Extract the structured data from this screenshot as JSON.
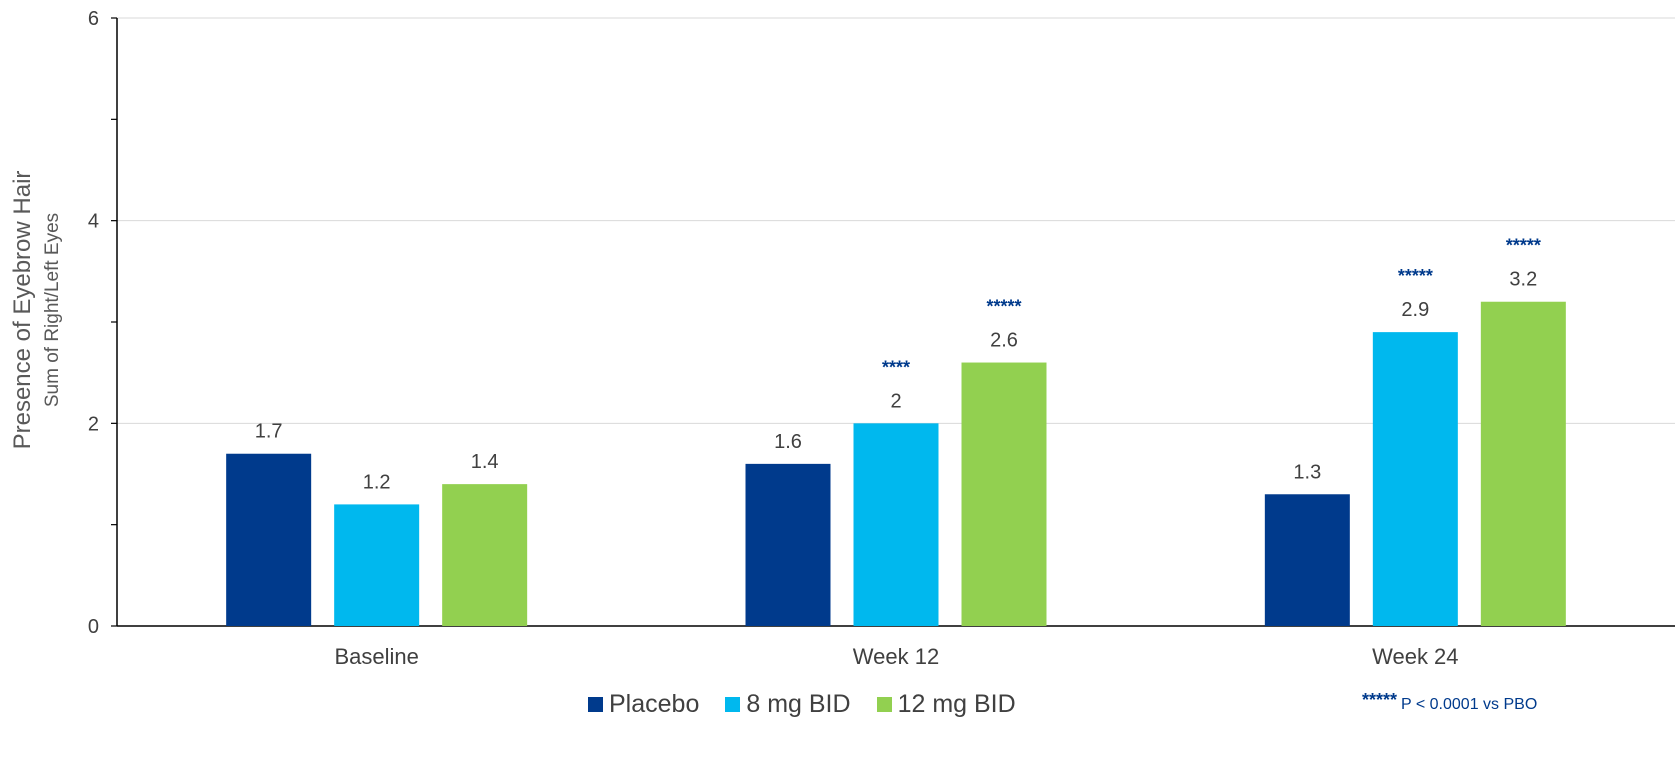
{
  "chart_data": {
    "type": "bar",
    "ylabel": "Presence of Eyebrow Hair",
    "ylabel_sub": "Sum of Right/Left Eyes",
    "ylim": [
      0,
      6
    ],
    "yticks": [
      0,
      2,
      4,
      6
    ],
    "grid": true,
    "legend_placement": "bottom",
    "categories": [
      "Baseline",
      "Week 12",
      "Week 24"
    ],
    "series": [
      {
        "name": "Placebo",
        "color": "#003a8c",
        "values": [
          1.7,
          1.6,
          1.3
        ],
        "labels": [
          "1.7",
          "1.6",
          "1.3"
        ],
        "significance": [
          "",
          "",
          ""
        ]
      },
      {
        "name": "8 mg BID",
        "color": "#00b8ee",
        "values": [
          1.2,
          2.0,
          2.9
        ],
        "labels": [
          "1.2",
          "2",
          "2.9"
        ],
        "significance": [
          "",
          "****",
          "*****"
        ]
      },
      {
        "name": "12 mg BID",
        "color": "#92d050",
        "values": [
          1.4,
          2.6,
          3.2
        ],
        "labels": [
          "1.4",
          "2.6",
          "3.2"
        ],
        "significance": [
          "",
          "*****",
          "*****"
        ]
      }
    ],
    "footnote": {
      "symbol": "*****",
      "text": "P < 0.0001 vs PBO"
    }
  }
}
